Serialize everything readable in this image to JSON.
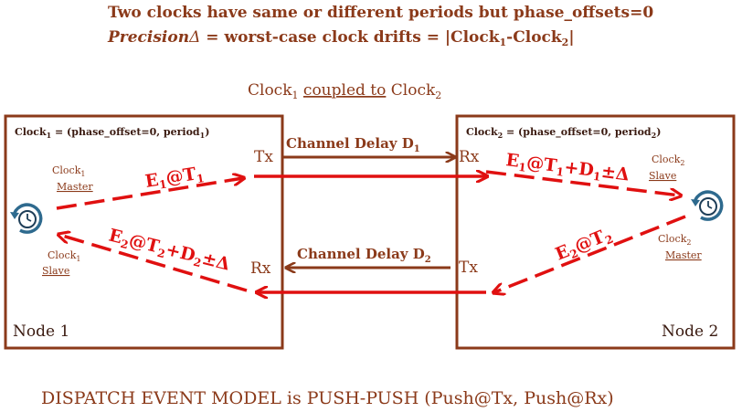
{
  "header": {
    "line1": "Two clocks have same or different periods but phase_offsets=0",
    "precision_word": "Precision",
    "precision_symbol": "Δ",
    "line2_rest": " = worst-case clock drifts = |Clock",
    "line2_sub1": "1",
    "line2_mid": "-Clock",
    "line2_sub2": "2",
    "line2_end": "|"
  },
  "coupling": {
    "clock_a": "Clock",
    "clock_a_sub": "1",
    "relation": "coupled to",
    "clock_b": "Clock",
    "clock_b_sub": "2"
  },
  "node1": {
    "clock_def": "Clock",
    "clock_def_sub": "1",
    "clock_def_rest": " = (phase_offset=0, period",
    "clock_def_period_sub": "1",
    "clock_def_close": ")",
    "master_label": "Clock",
    "master_sub": "1",
    "master_role": "Master",
    "slave_label": "Clock",
    "slave_sub": "1",
    "slave_role": "Slave",
    "tx": "Tx",
    "rx": "Rx",
    "name": "Node 1"
  },
  "node2": {
    "clock_def": "Clock",
    "clock_def_sub": "2",
    "clock_def_rest": " = (phase_offset=0, period",
    "clock_def_period_sub": "2",
    "clock_def_close": ")",
    "slave_label": "Clock",
    "slave_sub": "2",
    "slave_role": "Slave",
    "master_label": "Clock",
    "master_sub": "2",
    "master_role": "Master",
    "rx": "Rx",
    "tx": "Tx",
    "name": "Node 2"
  },
  "channels": {
    "top_label": "Channel Delay D",
    "top_sub": "1",
    "bottom_label": "Channel Delay D",
    "bottom_sub": "2"
  },
  "events": {
    "e1_send": "E",
    "e1_send_sub": "1",
    "e1_send_at": "@T",
    "e1_send_t_sub": "1",
    "e1_recv": "E",
    "e1_recv_sub": "1",
    "e1_recv_at": "@T",
    "e1_recv_t_sub": "1",
    "e1_recv_plus": "+D",
    "e1_recv_d_sub": "1",
    "e1_recv_pm": "±Δ",
    "e2_send": "E",
    "e2_send_sub": "2",
    "e2_send_at": "@T",
    "e2_send_t_sub": "2",
    "e2_recv": "E",
    "e2_recv_sub": "2",
    "e2_recv_at": "@T",
    "e2_recv_t_sub": "2",
    "e2_recv_plus": "+D",
    "e2_recv_d_sub": "2",
    "e2_recv_pm": "±Δ"
  },
  "footer": {
    "text": "DISPATCH EVENT MODEL is PUSH-PUSH (Push@Tx, Push@Rx)"
  },
  "colors": {
    "brown": "#8B3A1A",
    "red": "#E01010",
    "title": "#8B3A1A",
    "icon": "#2E6A8E"
  },
  "icons": [
    "clock-sync-icon",
    "clock-sync-icon"
  ]
}
